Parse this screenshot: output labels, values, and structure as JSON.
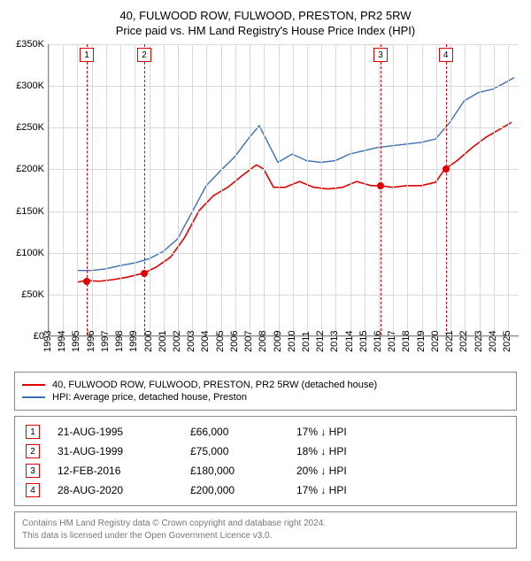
{
  "title": {
    "main": "40, FULWOOD ROW, FULWOOD, PRESTON, PR2 5RW",
    "sub": "Price paid vs. HM Land Registry's House Price Index (HPI)"
  },
  "chart": {
    "type": "line",
    "background_color": "#ffffff",
    "grid_color": "#d9d9d9",
    "axis_color": "#888888",
    "x": {
      "min": 1993,
      "max": 2025.8,
      "ticks": [
        1993,
        1994,
        1995,
        1996,
        1997,
        1998,
        1999,
        2000,
        2001,
        2002,
        2003,
        2004,
        2005,
        2006,
        2007,
        2008,
        2009,
        2010,
        2011,
        2012,
        2013,
        2014,
        2015,
        2016,
        2017,
        2018,
        2019,
        2020,
        2021,
        2022,
        2023,
        2024,
        2025
      ],
      "label_fontsize": 11
    },
    "y": {
      "min": 0,
      "max": 350000,
      "ticks": [
        0,
        50000,
        100000,
        150000,
        200000,
        250000,
        300000,
        350000
      ],
      "tick_labels": [
        "£0",
        "£50K",
        "£100K",
        "£150K",
        "£200K",
        "£250K",
        "£300K",
        "£350K"
      ],
      "label_fontsize": 11
    },
    "series": [
      {
        "name": "40, FULWOOD ROW, FULWOOD, PRESTON, PR2 5RW (detached house)",
        "color": "#e20000",
        "line_width": 1.6,
        "data": [
          [
            1995.0,
            64000
          ],
          [
            1995.65,
            66000
          ],
          [
            1996.5,
            65000
          ],
          [
            1997.5,
            67000
          ],
          [
            1998.5,
            70000
          ],
          [
            1999.66,
            75000
          ],
          [
            2000.5,
            82000
          ],
          [
            2001.5,
            94000
          ],
          [
            2002.5,
            118000
          ],
          [
            2003.5,
            150000
          ],
          [
            2004.5,
            168000
          ],
          [
            2005.5,
            178000
          ],
          [
            2006.5,
            192000
          ],
          [
            2007.5,
            205000
          ],
          [
            2008.0,
            200000
          ],
          [
            2008.7,
            178000
          ],
          [
            2009.5,
            178000
          ],
          [
            2010.5,
            185000
          ],
          [
            2011.5,
            178000
          ],
          [
            2012.5,
            176000
          ],
          [
            2013.5,
            178000
          ],
          [
            2014.5,
            185000
          ],
          [
            2015.5,
            180000
          ],
          [
            2016.12,
            180000
          ],
          [
            2017.0,
            178000
          ],
          [
            2018.0,
            180000
          ],
          [
            2019.0,
            180000
          ],
          [
            2020.0,
            184000
          ],
          [
            2020.66,
            200000
          ],
          [
            2021.5,
            210000
          ],
          [
            2022.5,
            225000
          ],
          [
            2023.5,
            238000
          ],
          [
            2024.5,
            248000
          ],
          [
            2025.3,
            256000
          ]
        ]
      },
      {
        "name": "HPI: Average price, detached house, Preston",
        "color": "#3b6fb6",
        "line_width": 1.4,
        "data": [
          [
            1995.0,
            78000
          ],
          [
            1996.0,
            78000
          ],
          [
            1997.0,
            80000
          ],
          [
            1998.0,
            84000
          ],
          [
            1999.0,
            87000
          ],
          [
            2000.0,
            92000
          ],
          [
            2001.0,
            101000
          ],
          [
            2002.0,
            116000
          ],
          [
            2003.0,
            148000
          ],
          [
            2004.0,
            180000
          ],
          [
            2005.0,
            198000
          ],
          [
            2006.0,
            215000
          ],
          [
            2007.0,
            238000
          ],
          [
            2007.7,
            252000
          ],
          [
            2008.5,
            225000
          ],
          [
            2009.0,
            208000
          ],
          [
            2010.0,
            218000
          ],
          [
            2011.0,
            210000
          ],
          [
            2012.0,
            208000
          ],
          [
            2013.0,
            210000
          ],
          [
            2014.0,
            218000
          ],
          [
            2015.0,
            222000
          ],
          [
            2016.0,
            226000
          ],
          [
            2017.0,
            228000
          ],
          [
            2018.0,
            230000
          ],
          [
            2019.0,
            232000
          ],
          [
            2020.0,
            236000
          ],
          [
            2021.0,
            256000
          ],
          [
            2022.0,
            282000
          ],
          [
            2023.0,
            292000
          ],
          [
            2024.0,
            296000
          ],
          [
            2025.0,
            305000
          ],
          [
            2025.5,
            310000
          ]
        ]
      }
    ],
    "markers": [
      {
        "n": "1",
        "x": 1995.65,
        "y": 66000
      },
      {
        "n": "2",
        "x": 1999.66,
        "y": 75000
      },
      {
        "n": "3",
        "x": 2016.12,
        "y": 180000
      },
      {
        "n": "4",
        "x": 2020.66,
        "y": 200000
      }
    ],
    "marker_box_color": "#e20000",
    "marker_dash_color": "#e20000",
    "marker_dot_color": "#e20000"
  },
  "legend": {
    "items": [
      {
        "color": "#e20000",
        "label": "40, FULWOOD ROW, FULWOOD, PRESTON, PR2 5RW (detached house)"
      },
      {
        "color": "#3b6fb6",
        "label": "HPI: Average price, detached house, Preston"
      }
    ]
  },
  "sales": [
    {
      "n": "1",
      "date": "21-AUG-1995",
      "price": "£66,000",
      "diff": "17% ↓ HPI"
    },
    {
      "n": "2",
      "date": "31-AUG-1999",
      "price": "£75,000",
      "diff": "18% ↓ HPI"
    },
    {
      "n": "3",
      "date": "12-FEB-2016",
      "price": "£180,000",
      "diff": "20% ↓ HPI"
    },
    {
      "n": "4",
      "date": "28-AUG-2020",
      "price": "£200,000",
      "diff": "17% ↓ HPI"
    }
  ],
  "footer": {
    "line1": "Contains HM Land Registry data © Crown copyright and database right 2024.",
    "line2": "This data is licensed under the Open Government Licence v3.0."
  }
}
